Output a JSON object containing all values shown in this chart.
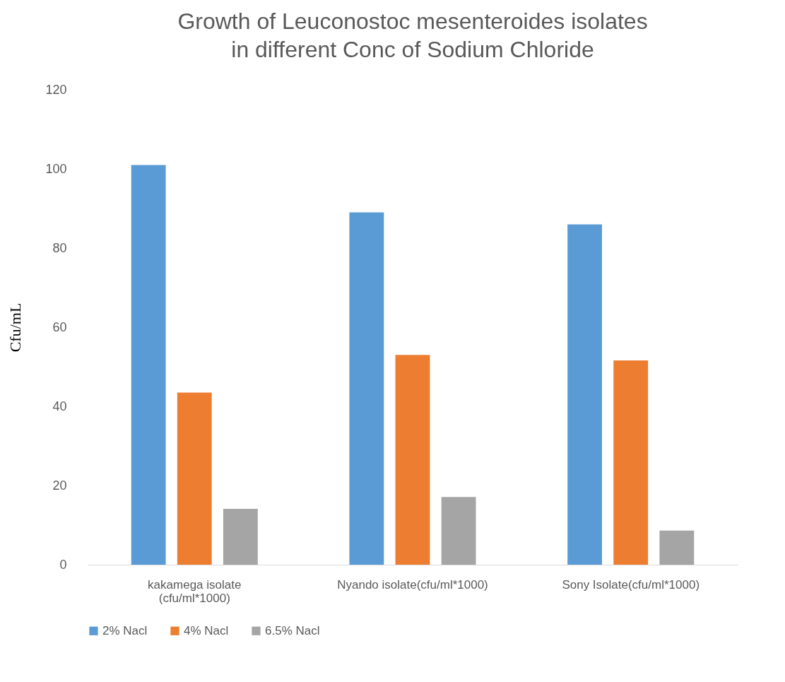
{
  "chart_data": {
    "type": "bar",
    "title": "Growth of Leuconostoc mesenteroides isolates in different Conc of Sodium Chloride",
    "ylabel": "Cfu/mL",
    "categories": [
      "kakamega isolate (cfu/ml*1000)",
      "Nyando isolate(cfu/ml*1000)",
      "Sony Isolate(cfu/ml*1000)"
    ],
    "series": [
      {
        "name": "2% Nacl",
        "color": "#5b9bd5",
        "values": [
          101,
          89,
          86
        ]
      },
      {
        "name": "4% Nacl",
        "color": "#ed7d31",
        "values": [
          43.5,
          53,
          51.6
        ]
      },
      {
        "name": "6.5% Nacl",
        "color": "#a5a5a5",
        "values": [
          14.1,
          17.1,
          8.6
        ]
      }
    ],
    "ylim": [
      0,
      120
    ],
    "yticks": [
      0,
      20,
      40,
      60,
      80,
      100,
      120
    ],
    "grid": false,
    "legend": "bottom"
  }
}
